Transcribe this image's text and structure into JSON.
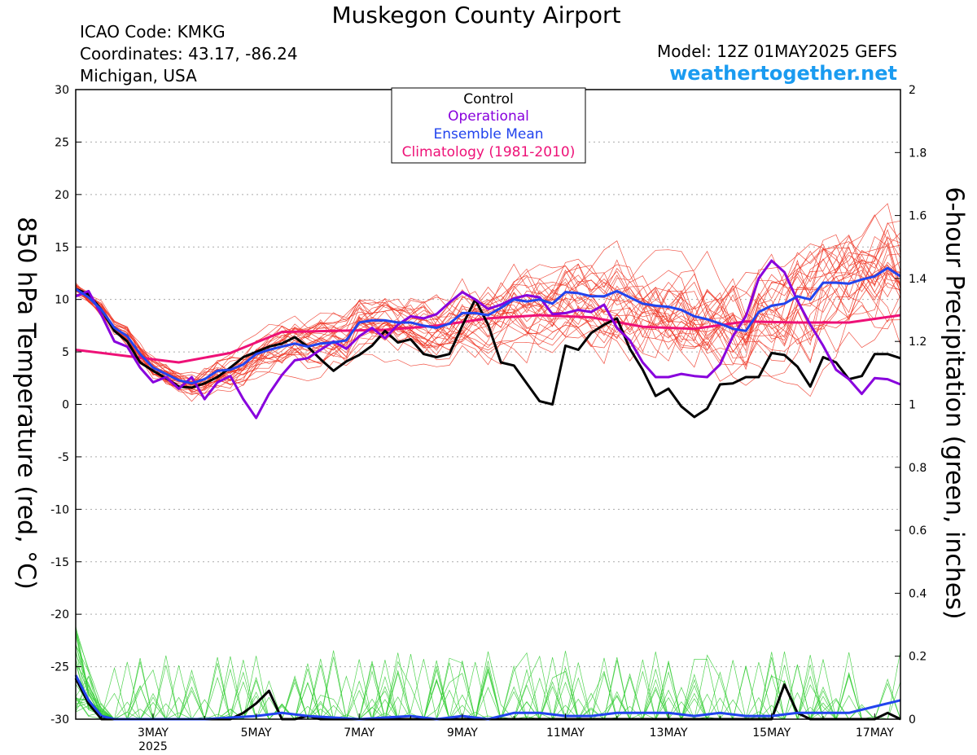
{
  "header": {
    "title": "Muskegon County Airport",
    "icao": "ICAO Code: KMKG",
    "coordinates": "Coordinates: 43.17, -86.24",
    "location": "Michigan, USA",
    "model": "Model: 12Z 01MAY2025 GEFS",
    "site": "weathertogether.net"
  },
  "colors": {
    "control": "#000000",
    "operational": "#8800dd",
    "ensemble_mean": "#2244ee",
    "climatology": "#ee1177",
    "members_temp": "#ee3322",
    "members_precip": "#33cc33"
  },
  "chart_data": {
    "type": "line",
    "title": "Muskegon County Airport",
    "ylabel": "850 hPa Temperature (red, °C)",
    "y2label": "6-hour Precipitation (green, inches)",
    "ylim": [
      -30,
      30
    ],
    "y2lim": [
      0,
      2
    ],
    "yticks": [
      "30",
      "25",
      "20",
      "15",
      "10",
      "5",
      "0",
      "-5",
      "-10",
      "-15",
      "-20",
      "-25",
      "-30"
    ],
    "y2ticks": [
      "2",
      "1.8",
      "1.6",
      "1.4",
      "1.2",
      "1",
      "0.8",
      "0.6",
      "0.4",
      "0.2",
      "0"
    ],
    "xticks": [
      {
        "label": "3MAY",
        "sub": "2025",
        "day": 3
      },
      {
        "label": "5MAY",
        "day": 5
      },
      {
        "label": "7MAY",
        "day": 7
      },
      {
        "label": "9MAY",
        "day": 9
      },
      {
        "label": "11MAY",
        "day": 11
      },
      {
        "label": "13MAY",
        "day": 13
      },
      {
        "label": "15MAY",
        "day": 15
      },
      {
        "label": "17MAY",
        "day": 17
      }
    ],
    "x_range_days": [
      1.5,
      17.5
    ],
    "grid": "dotted",
    "legend": {
      "placement": "top-center",
      "entries": [
        {
          "name": "Control",
          "color": "#000000"
        },
        {
          "name": "Operational",
          "color": "#8800dd"
        },
        {
          "name": "Ensemble Mean",
          "color": "#2244ee"
        },
        {
          "name": "Climatology (1981-2010)",
          "color": "#ee1177"
        }
      ]
    },
    "series": [
      {
        "name": "Climatology (1981-2010)",
        "axis": "temp",
        "x": [
          1.5,
          2.5,
          3.5,
          4.5,
          5.5,
          6.5,
          7.5,
          8.5,
          9.5,
          10.5,
          11.5,
          12.5,
          13.5,
          14.5,
          15.5,
          16.5,
          17.5
        ],
        "values": [
          5.2,
          4.6,
          4.0,
          4.9,
          6.9,
          7.0,
          7.1,
          7.5,
          8.2,
          8.5,
          8.3,
          7.4,
          7.2,
          7.9,
          7.8,
          7.8,
          8.5
        ]
      },
      {
        "name": "Control",
        "axis": "temp",
        "x": [
          1.5,
          1.75,
          2.0,
          2.25,
          2.5,
          2.75,
          3.0,
          3.25,
          3.5,
          3.75,
          4.0,
          4.25,
          4.5,
          4.75,
          5.0,
          5.25,
          5.5,
          5.75,
          6.0,
          6.25,
          6.5,
          6.75,
          7.0,
          7.25,
          7.5,
          7.75,
          8.0,
          8.25,
          8.5,
          8.75,
          9.0,
          9.25,
          9.5,
          9.75,
          10.0,
          10.25,
          10.5,
          10.75,
          11.0,
          11.25,
          11.5,
          11.75,
          12.0,
          12.25,
          12.5,
          12.75,
          13.0,
          13.25,
          13.5,
          13.75,
          14.0,
          14.25,
          14.5,
          14.75,
          15.0,
          15.25,
          15.5,
          15.75,
          16.0,
          16.25,
          16.5,
          16.75,
          17.0,
          17.25,
          17.5
        ],
        "values": [
          11.0,
          10.5,
          9.0,
          7.0,
          6.0,
          4.0,
          3.2,
          2.5,
          1.7,
          1.6,
          2.0,
          2.6,
          3.5,
          4.5,
          5.0,
          5.5,
          5.8,
          6.4,
          5.5,
          4.3,
          3.2,
          4.1,
          4.7,
          5.6,
          7.0,
          5.9,
          6.2,
          4.8,
          4.5,
          4.8,
          7.5,
          10.0,
          7.6,
          4.0,
          3.7,
          2.0,
          0.3,
          0.0,
          5.6,
          5.2,
          6.8,
          7.6,
          8.2,
          5.3,
          3.3,
          0.8,
          1.5,
          -0.2,
          -1.2,
          -0.4,
          1.9,
          2.0,
          2.6,
          2.6,
          4.9,
          4.7,
          3.6,
          1.7,
          4.5,
          4.0,
          2.4,
          2.7,
          4.8,
          4.8,
          4.4
        ]
      },
      {
        "name": "Operational",
        "axis": "temp",
        "x": [
          1.5,
          1.75,
          2.0,
          2.25,
          2.5,
          2.75,
          3.0,
          3.25,
          3.5,
          3.75,
          4.0,
          4.25,
          4.5,
          4.75,
          5.0,
          5.25,
          5.5,
          5.75,
          6.0,
          6.25,
          6.5,
          6.75,
          7.0,
          7.25,
          7.5,
          7.75,
          8.0,
          8.25,
          8.5,
          8.75,
          9.0,
          9.25,
          9.5,
          9.75,
          10.0,
          10.25,
          10.5,
          10.75,
          11.0,
          11.25,
          11.5,
          11.75,
          12.0,
          12.25,
          12.5,
          12.75,
          13.0,
          13.25,
          13.5,
          13.75,
          14.0,
          14.25,
          14.5,
          14.75,
          15.0,
          15.25,
          15.5,
          15.75,
          16.0,
          16.25,
          16.5,
          16.75,
          17.0,
          17.25,
          17.5
        ],
        "values": [
          10.3,
          10.8,
          8.5,
          6.0,
          5.5,
          3.5,
          2.1,
          2.6,
          1.5,
          2.6,
          0.5,
          2.1,
          2.7,
          0.5,
          -1.3,
          1.0,
          2.8,
          4.2,
          4.4,
          5.2,
          6.0,
          5.3,
          6.5,
          7.3,
          6.3,
          7.6,
          8.4,
          8.2,
          8.6,
          9.7,
          10.7,
          10.0,
          9.1,
          9.5,
          10.1,
          10.4,
          10.2,
          8.6,
          8.7,
          9.0,
          8.8,
          9.5,
          7.3,
          6.1,
          4.0,
          2.6,
          2.6,
          2.9,
          2.7,
          2.6,
          3.8,
          6.5,
          8.4,
          12.0,
          13.7,
          12.6,
          9.9,
          7.6,
          5.6,
          3.3,
          2.4,
          1.0,
          2.5,
          2.4,
          1.9
        ]
      },
      {
        "name": "Ensemble Mean",
        "axis": "temp",
        "x": [
          1.5,
          1.75,
          2.0,
          2.25,
          2.5,
          2.75,
          3.0,
          3.25,
          3.5,
          3.75,
          4.0,
          4.25,
          4.5,
          4.75,
          5.0,
          5.25,
          5.5,
          5.75,
          6.0,
          6.25,
          6.5,
          6.75,
          7.0,
          7.25,
          7.5,
          7.75,
          8.0,
          8.25,
          8.5,
          8.75,
          9.0,
          9.25,
          9.5,
          9.75,
          10.0,
          10.25,
          10.5,
          10.75,
          11.0,
          11.25,
          11.5,
          11.75,
          12.0,
          12.25,
          12.5,
          12.75,
          13.0,
          13.25,
          13.5,
          13.75,
          14.0,
          14.25,
          14.5,
          14.75,
          15.0,
          15.25,
          15.5,
          15.75,
          16.0,
          16.25,
          16.5,
          16.75,
          17.0,
          17.25,
          17.5
        ],
        "values": [
          11.0,
          10.2,
          9.0,
          7.3,
          6.5,
          4.8,
          3.5,
          2.9,
          2.3,
          2.0,
          2.4,
          3.2,
          3.3,
          3.8,
          4.8,
          5.2,
          5.5,
          5.8,
          5.5,
          5.8,
          5.9,
          6.1,
          7.8,
          8.0,
          8.0,
          7.8,
          7.8,
          7.5,
          7.3,
          7.7,
          8.7,
          8.7,
          8.5,
          9.2,
          10.0,
          9.8,
          10.0,
          9.6,
          10.7,
          10.6,
          10.3,
          10.3,
          10.8,
          10.2,
          9.6,
          9.4,
          9.3,
          9.0,
          8.4,
          8.1,
          7.7,
          7.2,
          7.0,
          8.8,
          9.4,
          9.6,
          10.3,
          10.0,
          11.6,
          11.6,
          11.5,
          11.9,
          12.2,
          13.0,
          12.2
        ]
      },
      {
        "name": "Control",
        "axis": "precip",
        "x": [
          1.5,
          1.75,
          2.0,
          2.25,
          2.5,
          3.0,
          4.0,
          4.5,
          4.75,
          5.0,
          5.25,
          5.5,
          5.75,
          6.0,
          6.25,
          6.5,
          6.75,
          7.0,
          7.5,
          8.0,
          9.0,
          10.0,
          11.0,
          12.0,
          12.5,
          13.0,
          14.0,
          14.75,
          15.0,
          15.25,
          15.5,
          15.75,
          16.0,
          16.25,
          16.5,
          16.75,
          17.0,
          17.25,
          17.5
        ],
        "values": [
          0.13,
          0.05,
          0.0,
          0.0,
          0.0,
          0.0,
          0.0,
          0.0,
          0.02,
          0.05,
          0.09,
          0.0,
          0.0,
          0.01,
          0.0,
          0.0,
          0.0,
          0.0,
          0.0,
          0.0,
          0.0,
          0.0,
          0.0,
          0.0,
          0.0,
          0.0,
          0.0,
          0.0,
          0.0,
          0.11,
          0.02,
          0.0,
          0.0,
          0.0,
          0.0,
          0.0,
          0.0,
          0.02,
          0.0
        ]
      },
      {
        "name": "Ensemble Mean",
        "axis": "precip",
        "x": [
          1.5,
          1.75,
          2.0,
          2.25,
          2.5,
          3.0,
          4.0,
          5.0,
          5.5,
          6.0,
          7.0,
          8.0,
          8.5,
          9.0,
          9.5,
          10.0,
          10.5,
          11.0,
          11.5,
          12.0,
          12.5,
          13.0,
          13.5,
          14.0,
          14.5,
          15.0,
          15.5,
          16.0,
          16.5,
          17.0,
          17.5
        ],
        "values": [
          0.14,
          0.06,
          0.01,
          0.0,
          0.0,
          0.0,
          0.0,
          0.01,
          0.02,
          0.01,
          0.0,
          0.01,
          0.0,
          0.01,
          0.0,
          0.02,
          0.02,
          0.01,
          0.01,
          0.02,
          0.02,
          0.02,
          0.01,
          0.02,
          0.01,
          0.01,
          0.02,
          0.02,
          0.02,
          0.04,
          0.06
        ]
      }
    ]
  }
}
